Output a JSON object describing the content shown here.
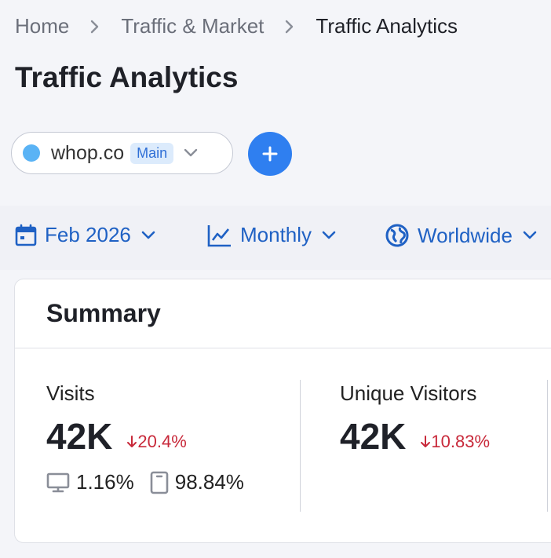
{
  "breadcrumb": {
    "items": [
      {
        "label": "Home"
      },
      {
        "label": "Traffic & Market"
      },
      {
        "label": "Traffic Analytics"
      }
    ]
  },
  "page_title": "Traffic Analytics",
  "domain": {
    "name": "whop.co",
    "badge": "Main",
    "dot_color": "#5ab3f5"
  },
  "add_button": {
    "icon": "plus-icon"
  },
  "filters": {
    "date": {
      "label": "Feb 2026",
      "icon": "calendar-icon"
    },
    "granularity": {
      "label": "Monthly",
      "icon": "line-chart-icon"
    },
    "region": {
      "label": "Worldwide",
      "icon": "globe-icon"
    }
  },
  "summary": {
    "title": "Summary",
    "metrics": [
      {
        "label": "Visits",
        "value": "42K",
        "change": "20.4%",
        "change_direction": "down",
        "desktop_share": "1.16%",
        "mobile_share": "98.84%"
      },
      {
        "label": "Unique Visitors",
        "value": "42K",
        "change": "10.83%",
        "change_direction": "down"
      }
    ]
  },
  "colors": {
    "accent": "#2f7ff0",
    "link": "#1f61c4",
    "negative": "#c8293a"
  }
}
